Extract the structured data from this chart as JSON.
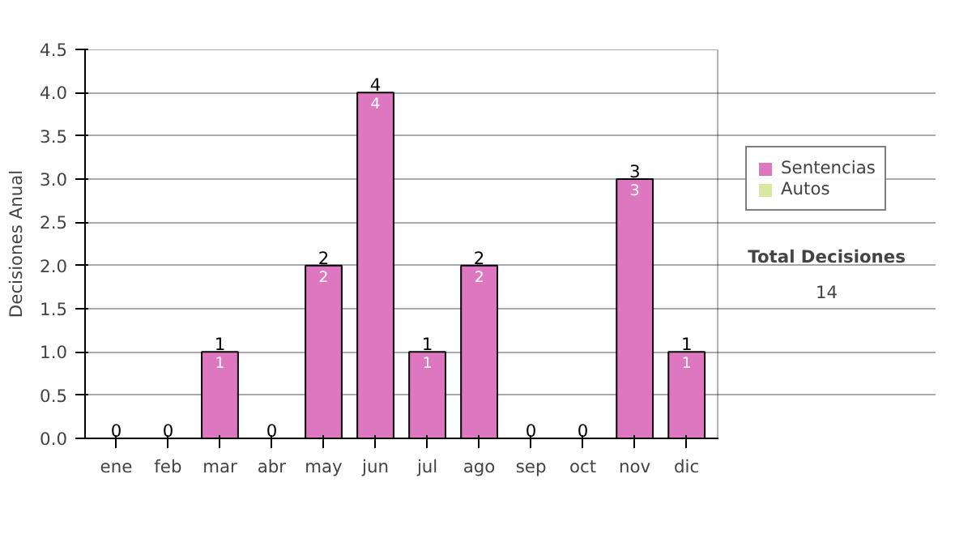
{
  "chart_data": {
    "type": "bar",
    "stacked": true,
    "ylabel": "Decisiones Anual",
    "categories": [
      "ene",
      "feb",
      "mar",
      "abr",
      "may",
      "jun",
      "jul",
      "ago",
      "sep",
      "oct",
      "nov",
      "dic"
    ],
    "series": [
      {
        "name": "Sentencias",
        "color": "#dd77c0",
        "values": [
          0,
          0,
          1,
          0,
          2,
          4,
          1,
          2,
          0,
          0,
          3,
          1
        ],
        "value_labels": [
          null,
          null,
          "1",
          null,
          "2",
          "4",
          "1",
          "2",
          null,
          null,
          "3",
          "1"
        ]
      },
      {
        "name": "Autos",
        "color": "#d8e8a0",
        "values": [
          0,
          0,
          0,
          0,
          0,
          0,
          0,
          0,
          0,
          0,
          0,
          0
        ]
      }
    ],
    "totals": [
      "0",
      "0",
      "1",
      "0",
      "2",
      "4",
      "1",
      "2",
      "0",
      "0",
      "3",
      "1"
    ],
    "ylim": [
      0,
      4.5
    ],
    "yticks": [
      {
        "value": 0,
        "label": "0.0"
      },
      {
        "value": 0.5,
        "label": "0.5"
      },
      {
        "value": 1,
        "label": "1.0"
      },
      {
        "value": 1.5,
        "label": "1.5"
      },
      {
        "value": 2,
        "label": "2.0"
      },
      {
        "value": 2.5,
        "label": "2.5"
      },
      {
        "value": 3,
        "label": "3.0"
      },
      {
        "value": 3.5,
        "label": "3.5"
      },
      {
        "value": 4,
        "label": "4.0"
      },
      {
        "value": 4.5,
        "label": "4.5"
      }
    ],
    "grid": "y",
    "legend": "right",
    "annotations": [
      "Total Decisiones",
      "14"
    ]
  }
}
